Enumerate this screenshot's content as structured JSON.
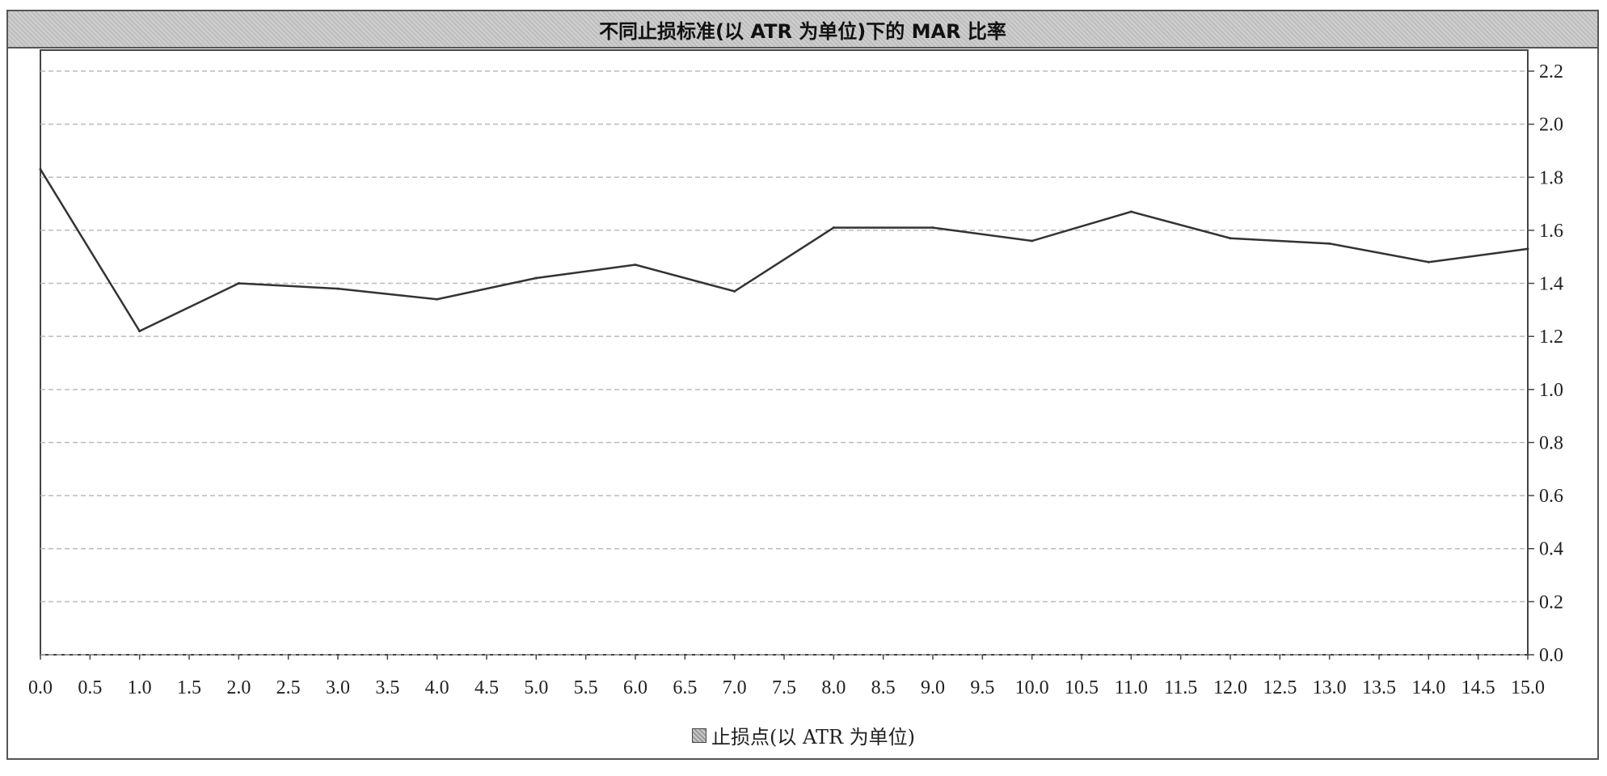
{
  "chart_data": {
    "type": "line",
    "title": "不同止损标准(以 ATR 为单位)下的 MAR 比率",
    "legend": "止损点(以 ATR 为单位)",
    "legend_position": "bottom",
    "grid": true,
    "x_ticks": [
      "0.0",
      "0.5",
      "1.0",
      "1.5",
      "2.0",
      "2.5",
      "3.0",
      "3.5",
      "4.0",
      "4.5",
      "5.0",
      "5.5",
      "6.0",
      "6.5",
      "7.0",
      "7.5",
      "8.0",
      "8.5",
      "9.0",
      "9.5",
      "10.0",
      "10.5",
      "11.0",
      "11.5",
      "12.0",
      "12.5",
      "13.0",
      "13.5",
      "14.0",
      "14.5",
      "15.0"
    ],
    "y_ticks": [
      "0.0",
      "0.2",
      "0.4",
      "0.6",
      "0.8",
      "1.0",
      "1.2",
      "1.4",
      "1.6",
      "1.8",
      "2.0",
      "2.2"
    ],
    "xlim": [
      0,
      15
    ],
    "ylim": [
      0,
      2.2
    ],
    "series": [
      {
        "x": [
          0,
          1,
          2,
          3,
          4,
          5,
          6,
          7,
          8,
          9,
          10,
          11,
          12,
          13,
          14,
          15
        ],
        "values": [
          1.83,
          1.22,
          1.4,
          1.38,
          1.34,
          1.42,
          1.47,
          1.37,
          1.61,
          1.61,
          1.56,
          1.67,
          1.57,
          1.55,
          1.48,
          1.53
        ]
      }
    ],
    "line_color": "#333333",
    "grid_color": "#bbbbbb"
  }
}
